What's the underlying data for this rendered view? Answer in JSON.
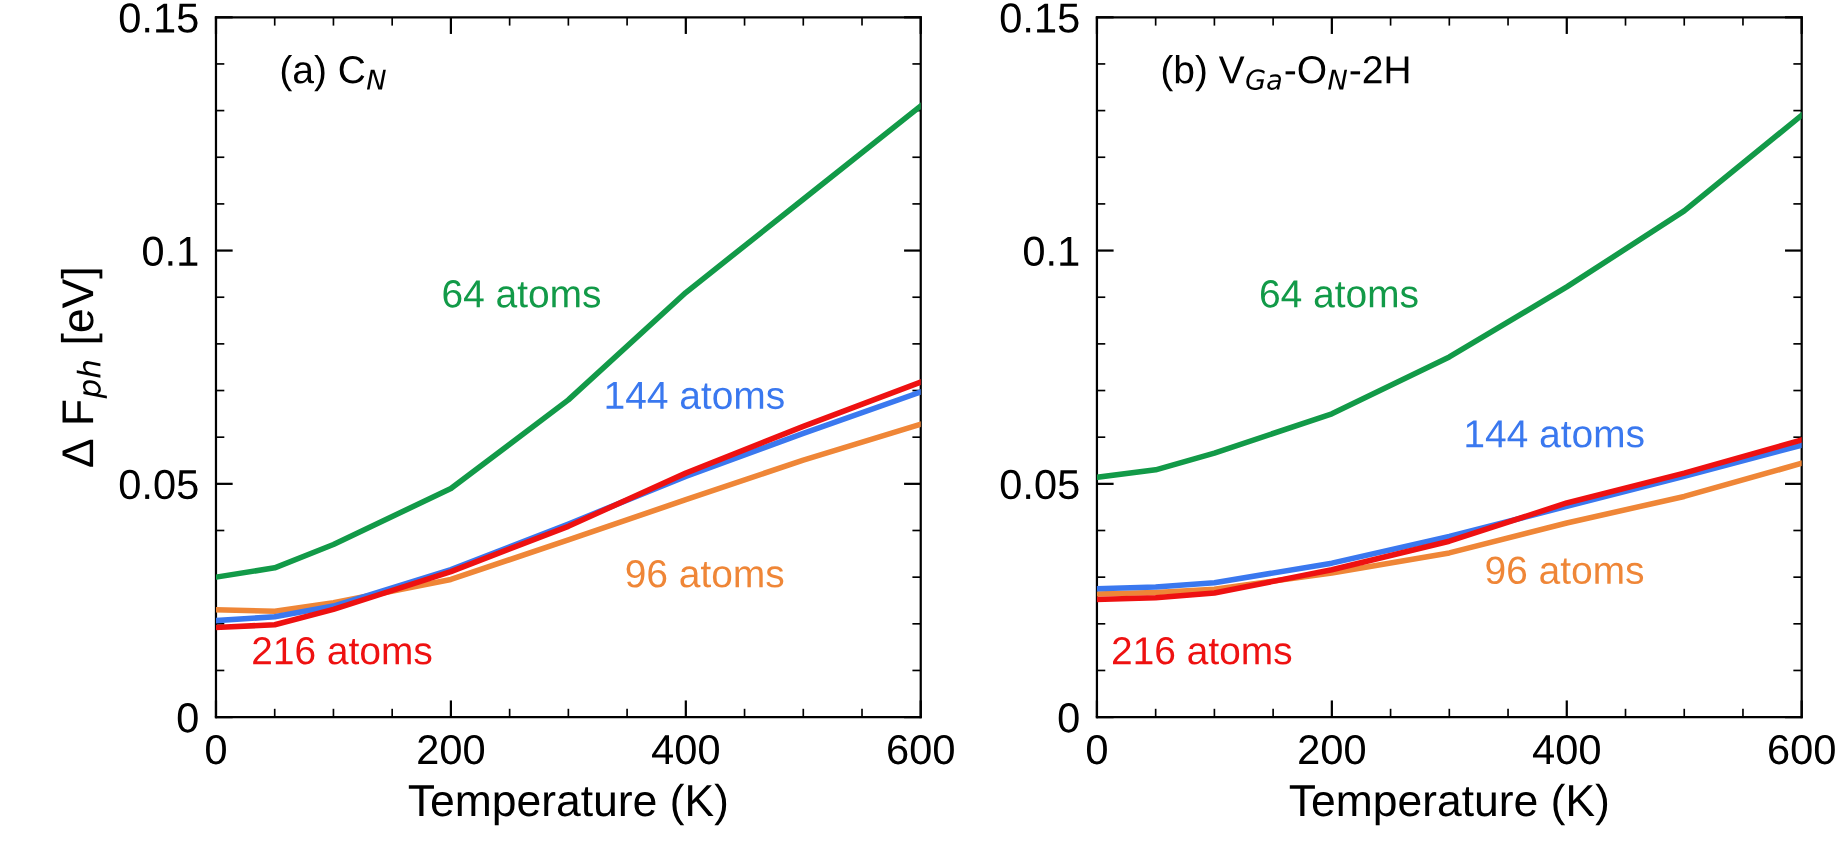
{
  "chart_data": [
    {
      "type": "line",
      "title": "(a) C$_{N}$",
      "xlabel": "Temperature (K)",
      "ylabel": "Δ F$_{ph}$ [eV]",
      "x": [
        0,
        50,
        100,
        200,
        300,
        400,
        500,
        600
      ],
      "xlim": [
        0,
        600
      ],
      "xticks": [
        0,
        200,
        400,
        600
      ],
      "ylim": [
        0,
        0.15
      ],
      "yticks": [
        0,
        {
          "value": 0.05,
          "label": "0.05"
        },
        {
          "value": 0.1,
          "label": "0.1"
        },
        {
          "value": 0.15,
          "label": "0.15"
        }
      ],
      "grid": false,
      "legend": false,
      "line_style": "solid",
      "marker": "none",
      "series": [
        {
          "name": "64 atoms",
          "color": "#129a48",
          "values": [
            0.03,
            0.032,
            0.037,
            0.049,
            0.068,
            0.091,
            0.111,
            0.131
          ]
        },
        {
          "name": "96 atoms",
          "color": "#ef8637",
          "values": [
            0.023,
            0.0227,
            0.0245,
            0.0295,
            0.038,
            0.0466,
            0.0551,
            0.0628
          ]
        },
        {
          "name": "144 atoms",
          "color": "#3a78ef",
          "values": [
            0.0207,
            0.0215,
            0.0238,
            0.0316,
            0.0414,
            0.0516,
            0.0608,
            0.0697
          ]
        },
        {
          "name": "216 atoms",
          "color": "#ee1111",
          "values": [
            0.0192,
            0.0198,
            0.0231,
            0.0312,
            0.0409,
            0.0523,
            0.0623,
            0.0718
          ]
        }
      ]
    },
    {
      "type": "line",
      "title": "(b) V$_{Ga}$-O$_{N}$-2H",
      "xlabel": "Temperature (K)",
      "x": [
        0,
        50,
        100,
        200,
        300,
        400,
        500,
        600
      ],
      "xlim": [
        0,
        600
      ],
      "xticks": [
        0,
        200,
        400,
        600
      ],
      "ylim": [
        0,
        0.15
      ],
      "yticks": [
        0,
        {
          "value": 0.05,
          "label": "0.05"
        },
        {
          "value": 0.1,
          "label": "0.1"
        },
        {
          "value": 0.15,
          "label": "0.15"
        }
      ],
      "grid": false,
      "legend": false,
      "line_style": "solid",
      "marker": "none",
      "series": [
        {
          "name": "64 atoms",
          "color": "#129a48",
          "values": [
            0.0514,
            0.053,
            0.0566,
            0.065,
            0.0772,
            0.0922,
            0.1085,
            0.129
          ]
        },
        {
          "name": "96 atoms",
          "color": "#ef8637",
          "values": [
            0.0264,
            0.0267,
            0.0274,
            0.0309,
            0.0352,
            0.0416,
            0.0473,
            0.0544
          ]
        },
        {
          "name": "144 atoms",
          "color": "#3a78ef",
          "values": [
            0.0275,
            0.0279,
            0.0288,
            0.033,
            0.0387,
            0.0452,
            0.0516,
            0.0583
          ]
        },
        {
          "name": "216 atoms",
          "color": "#ee1111",
          "values": [
            0.0252,
            0.0256,
            0.0266,
            0.0316,
            0.0377,
            0.0459,
            0.0523,
            0.0594
          ]
        }
      ]
    }
  ]
}
